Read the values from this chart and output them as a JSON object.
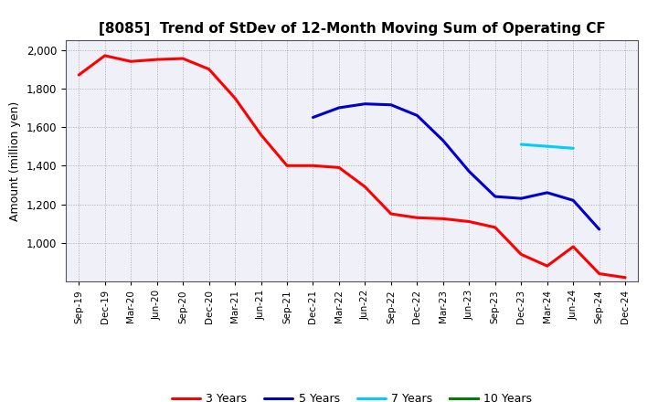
{
  "title": "[8085]  Trend of StDev of 12-Month Moving Sum of Operating CF",
  "ylabel": "Amount (million yen)",
  "background_color": "#ffffff",
  "plot_bg_color": "#f0f0f8",
  "grid_color": "#999999",
  "ylim": [
    800,
    2050
  ],
  "yticks": [
    1000,
    1200,
    1400,
    1600,
    1800,
    2000
  ],
  "legend_labels": [
    "3 Years",
    "5 Years",
    "7 Years",
    "10 Years"
  ],
  "legend_colors": [
    "#ff0000",
    "#0000cd",
    "#00ccff",
    "#008000"
  ],
  "x_labels": [
    "Sep-19",
    "Dec-19",
    "Mar-20",
    "Jun-20",
    "Sep-20",
    "Dec-20",
    "Mar-21",
    "Jun-21",
    "Sep-21",
    "Dec-21",
    "Mar-22",
    "Jun-22",
    "Sep-22",
    "Dec-22",
    "Mar-23",
    "Jun-23",
    "Sep-23",
    "Dec-23",
    "Mar-24",
    "Jun-24",
    "Sep-24",
    "Dec-24"
  ],
  "series_3y": {
    "x": [
      0,
      1,
      2,
      3,
      4,
      5,
      6,
      7,
      8,
      9,
      10,
      11,
      12,
      13,
      14,
      15,
      16,
      17,
      18,
      19,
      20,
      21
    ],
    "y": [
      1870,
      1970,
      1940,
      1950,
      1955,
      1900,
      1750,
      1560,
      1400,
      1400,
      1390,
      1290,
      1150,
      1130,
      1125,
      1110,
      1080,
      940,
      880,
      980,
      840,
      820
    ]
  },
  "series_5y": {
    "x": [
      9,
      10,
      11,
      12,
      13,
      14,
      15,
      16,
      17,
      18,
      19,
      20
    ],
    "y": [
      1650,
      1700,
      1720,
      1715,
      1660,
      1530,
      1370,
      1240,
      1230,
      1260,
      1220,
      1070
    ]
  },
  "series_7y": {
    "x": [
      17,
      18,
      19
    ],
    "y": [
      1510,
      1500,
      1490
    ]
  },
  "series_10y": {
    "x": [],
    "y": []
  }
}
